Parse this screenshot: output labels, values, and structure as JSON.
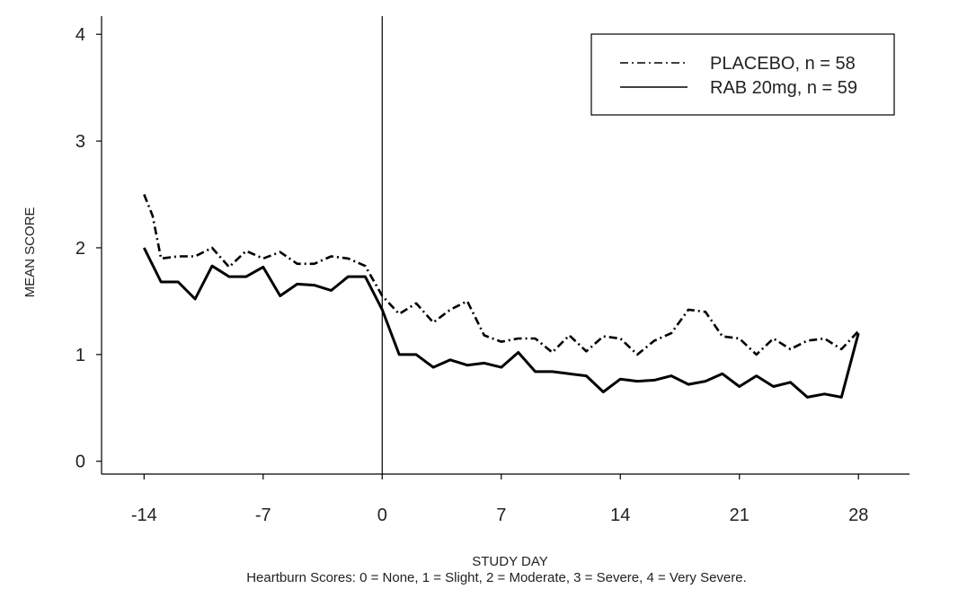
{
  "chart_data": {
    "type": "line",
    "xlabel": "STUDY DAY",
    "ylabel": "MEAN SCORE",
    "footnote": "Heartburn Scores: 0 = None, 1 = Slight, 2 = Moderate, 3 = Severe, 4 = Very Severe.",
    "xlim": [
      -16.5,
      31
    ],
    "ylim": [
      -0.12,
      4.17
    ],
    "xticks": [
      -14,
      -7,
      0,
      7,
      14,
      21,
      28
    ],
    "yticks": [
      0,
      1,
      2,
      3,
      4
    ],
    "reference_line_x": 0,
    "legend_position": "top-right",
    "series": [
      {
        "name": "PLACEBO, n = 58",
        "style": "dash-dot",
        "color": "#000000",
        "x": [
          -14,
          -13.5,
          -13,
          -12,
          -11,
          -10,
          -9,
          -8,
          -7,
          -6,
          -5,
          -4,
          -3,
          -2,
          -1,
          0,
          1,
          2,
          3,
          4,
          5,
          6,
          7,
          8,
          9,
          10,
          11,
          12,
          13,
          14,
          15,
          16,
          17,
          18,
          19,
          20,
          21,
          22,
          23,
          24,
          25,
          26,
          27,
          28
        ],
        "y": [
          2.5,
          2.3,
          1.9,
          1.92,
          1.92,
          2.0,
          1.82,
          1.97,
          1.9,
          1.96,
          1.85,
          1.85,
          1.92,
          1.9,
          1.83,
          1.55,
          1.38,
          1.48,
          1.3,
          1.42,
          1.5,
          1.18,
          1.12,
          1.15,
          1.15,
          1.02,
          1.18,
          1.03,
          1.17,
          1.15,
          1.0,
          1.13,
          1.2,
          1.42,
          1.4,
          1.17,
          1.15,
          1.0,
          1.15,
          1.05,
          1.13,
          1.15,
          1.05,
          1.22
        ]
      },
      {
        "name": "RAB 20mg, n = 59",
        "style": "solid",
        "color": "#000000",
        "x": [
          -14,
          -13,
          -12,
          -11,
          -10,
          -9,
          -8,
          -7,
          -6,
          -5,
          -4,
          -3,
          -2,
          -1,
          0,
          1,
          2,
          3,
          4,
          5,
          6,
          7,
          8,
          9,
          10,
          11,
          12,
          13,
          14,
          15,
          16,
          17,
          18,
          19,
          20,
          21,
          22,
          23,
          24,
          25,
          26,
          27,
          28
        ],
        "y": [
          2.0,
          1.68,
          1.68,
          1.52,
          1.83,
          1.73,
          1.73,
          1.82,
          1.55,
          1.66,
          1.65,
          1.6,
          1.73,
          1.73,
          1.42,
          1.0,
          1.0,
          0.88,
          0.95,
          0.9,
          0.92,
          0.88,
          1.02,
          0.84,
          0.84,
          0.82,
          0.8,
          0.65,
          0.77,
          0.75,
          0.76,
          0.8,
          0.72,
          0.75,
          0.82,
          0.7,
          0.8,
          0.7,
          0.74,
          0.6,
          0.63,
          0.6,
          1.2
        ]
      }
    ]
  }
}
